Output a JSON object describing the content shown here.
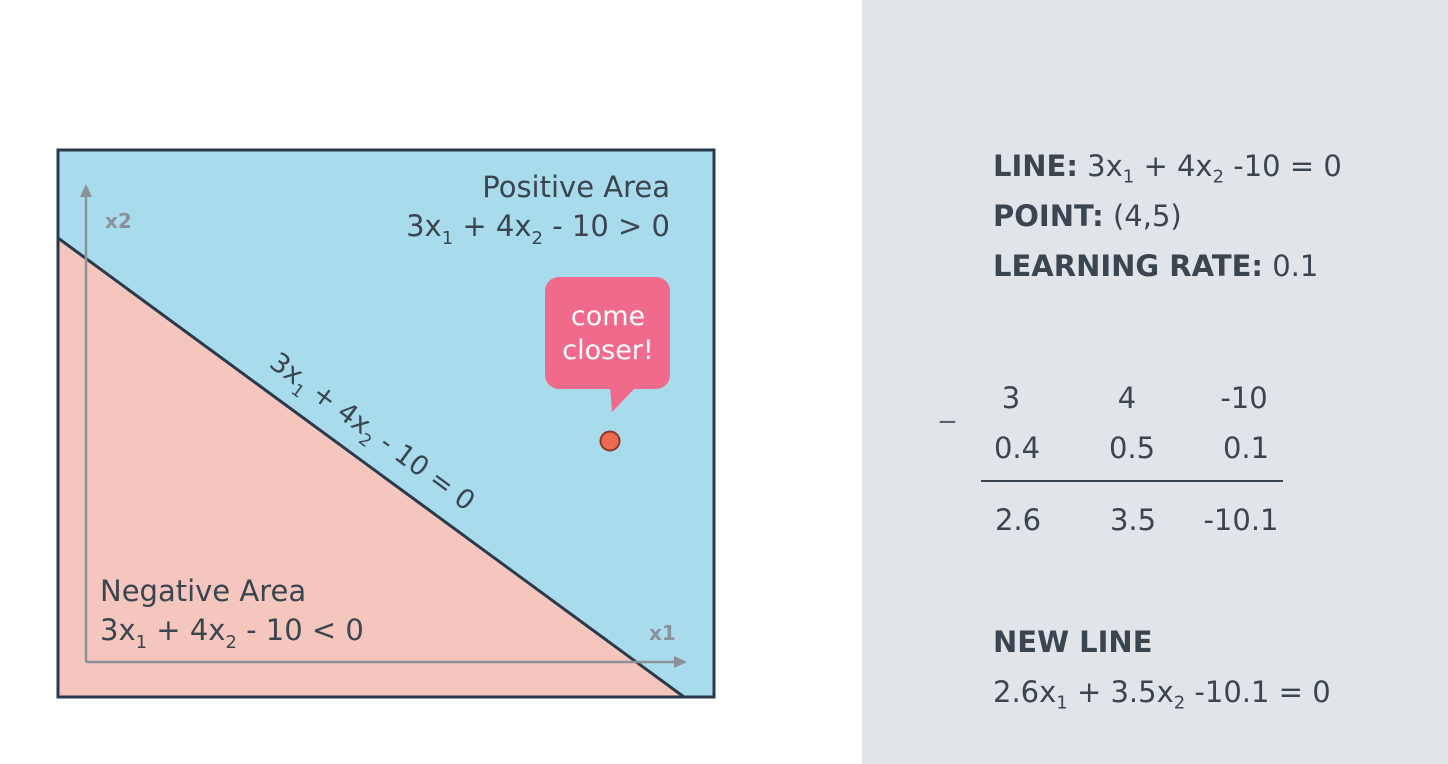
{
  "diagram": {
    "axes": {
      "x_label": "x1",
      "y_label": "x2"
    },
    "positive_area": {
      "title": "Positive Area",
      "inequality": {
        "a": "3x",
        "a_sub": "1",
        "b": " + 4x",
        "b_sub": "2",
        "rest": " - 10 > 0"
      }
    },
    "negative_area": {
      "title": "Negative Area",
      "inequality": {
        "a": "3x",
        "a_sub": "1",
        "b": " + 4x",
        "b_sub": "2",
        "rest": " - 10 < 0"
      }
    },
    "line_label": {
      "a": "3x",
      "a_sub": "1",
      "b": " + 4x",
      "b_sub": "2",
      "rest": " - 10 = 0"
    },
    "speech_bubble": {
      "line1": "come",
      "line2": "closer!"
    },
    "colors": {
      "positive": "#a8dcec",
      "negative": "#f5c6bd",
      "border": "#2a3a4a",
      "axis": "#8a9199",
      "bubble": "#ef6a8b",
      "point": "#ee6a4f"
    }
  },
  "info": {
    "line": {
      "label": "LINE:",
      "a": " 3x",
      "a_sub": "1",
      "b": " + 4x",
      "b_sub": "2",
      "rest": " -10 = 0"
    },
    "point": {
      "label": "POINT:",
      "value": " (4,5)"
    },
    "learning_rate": {
      "label": "LEARNING RATE:",
      "value": " 0.1"
    }
  },
  "calculation": {
    "operator": "_",
    "row1": [
      "3",
      "4",
      "-10"
    ],
    "row2": [
      "0.4",
      "0.5",
      "0.1"
    ],
    "result": [
      "2.6",
      "3.5",
      "-10.1"
    ]
  },
  "new_line": {
    "title": "NEW LINE",
    "equation": {
      "a": "2.6x",
      "a_sub": "1",
      "b": " + 3.5x",
      "b_sub": "2",
      "rest": " -10.1 = 0"
    }
  }
}
